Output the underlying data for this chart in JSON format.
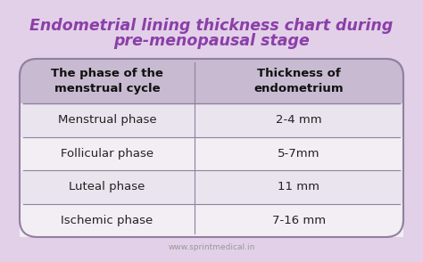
{
  "title_line1": "Endometrial lining thickness chart during",
  "title_line2": "pre-menopausal stage",
  "title_color": "#8B3FA8",
  "bg_color": "#E2D0E8",
  "table_bg_color": "#F2EEF4",
  "header_bg_color": "#C8BAD0",
  "row_odd_color": "#EAE4EE",
  "row_even_color": "#F2EEF4",
  "border_color": "#9080A0",
  "col1_header": "The phase of the\nmenstrual cycle",
  "col2_header": "Thickness of\nendometrium",
  "rows": [
    [
      "Menstrual phase",
      "2-4 mm"
    ],
    [
      "Follicular phase",
      "5-7mm"
    ],
    [
      "Luteal phase",
      "11 mm"
    ],
    [
      "Ischemic phase",
      "7-16 mm"
    ]
  ],
  "footer": "www.sprintmedical.in",
  "footer_color": "#999999",
  "text_color": "#222222",
  "header_text_color": "#111111",
  "title_fontsize": 12.5,
  "header_fontsize": 9.5,
  "row_fontsize": 9.5
}
